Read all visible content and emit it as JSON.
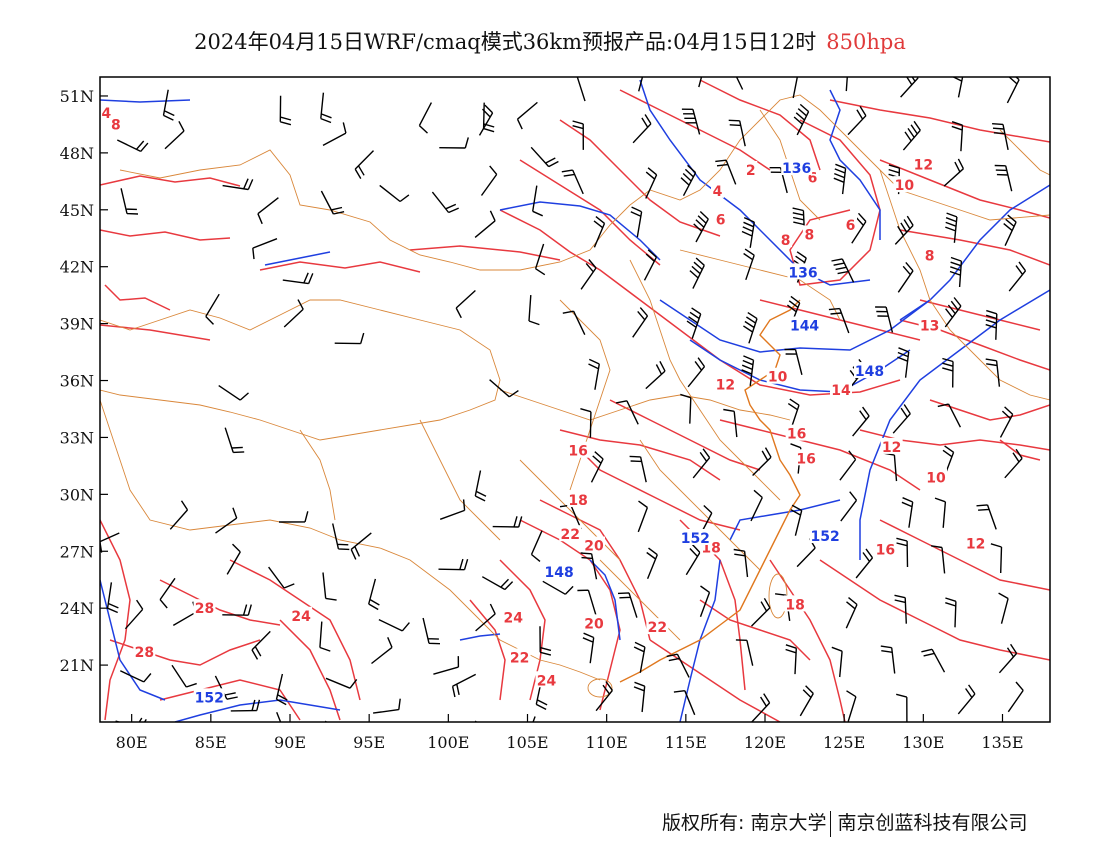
{
  "title": {
    "text": "2024年04月15日WRF/cmaq模式36km预报产品:04月15日12时",
    "level": "850hpa",
    "level_color": "#e03a3a"
  },
  "map": {
    "lon_range": [
      78,
      138
    ],
    "lat_range": [
      18,
      52
    ],
    "lat_ticks": [
      "51N",
      "48N",
      "45N",
      "42N",
      "39N",
      "36N",
      "33N",
      "30N",
      "27N",
      "24N",
      "21N"
    ],
    "lon_ticks": [
      "80E",
      "85E",
      "90E",
      "95E",
      "100E",
      "105E",
      "110E",
      "115E",
      "120E",
      "125E",
      "130E",
      "135E"
    ],
    "colors": {
      "temperature": "#e8393f",
      "geopotential": "#1f3fe0",
      "border": "#d9873a",
      "wind": "#000000"
    },
    "temperature_labels": [
      {
        "text": "4",
        "lon": 78.4,
        "lat": 50.1
      },
      {
        "text": "8",
        "lon": 79.0,
        "lat": 49.5
      },
      {
        "text": "2",
        "lon": 119.1,
        "lat": 47.1
      },
      {
        "text": "4",
        "lon": 117.0,
        "lat": 46.0
      },
      {
        "text": "6",
        "lon": 123.0,
        "lat": 46.7
      },
      {
        "text": "6",
        "lon": 117.2,
        "lat": 44.5
      },
      {
        "text": "8",
        "lon": 121.3,
        "lat": 43.4
      },
      {
        "text": "8",
        "lon": 122.8,
        "lat": 43.7
      },
      {
        "text": "6",
        "lon": 125.4,
        "lat": 44.2
      },
      {
        "text": "12",
        "lon": 130.0,
        "lat": 47.4
      },
      {
        "text": "10",
        "lon": 128.8,
        "lat": 46.3
      },
      {
        "text": "8",
        "lon": 130.4,
        "lat": 42.6
      },
      {
        "text": "12",
        "lon": 117.5,
        "lat": 35.8
      },
      {
        "text": "10",
        "lon": 120.8,
        "lat": 36.2
      },
      {
        "text": "14",
        "lon": 124.8,
        "lat": 35.5
      },
      {
        "text": "13",
        "lon": 130.4,
        "lat": 38.9
      },
      {
        "text": "16",
        "lon": 108.2,
        "lat": 32.3
      },
      {
        "text": "16",
        "lon": 122.0,
        "lat": 33.2
      },
      {
        "text": "16",
        "lon": 122.6,
        "lat": 31.9
      },
      {
        "text": "12",
        "lon": 128.0,
        "lat": 32.5
      },
      {
        "text": "10",
        "lon": 130.8,
        "lat": 30.9
      },
      {
        "text": "18",
        "lon": 108.2,
        "lat": 29.7
      },
      {
        "text": "22",
        "lon": 107.7,
        "lat": 27.9
      },
      {
        "text": "20",
        "lon": 109.2,
        "lat": 27.3
      },
      {
        "text": "18",
        "lon": 116.6,
        "lat": 27.2
      },
      {
        "text": "16",
        "lon": 127.6,
        "lat": 27.1
      },
      {
        "text": "12",
        "lon": 133.3,
        "lat": 27.4
      },
      {
        "text": "28",
        "lon": 84.6,
        "lat": 24.0
      },
      {
        "text": "24",
        "lon": 90.7,
        "lat": 23.6
      },
      {
        "text": "28",
        "lon": 80.8,
        "lat": 21.7
      },
      {
        "text": "24",
        "lon": 104.1,
        "lat": 23.5
      },
      {
        "text": "20",
        "lon": 109.2,
        "lat": 23.2
      },
      {
        "text": "22",
        "lon": 113.2,
        "lat": 23.0
      },
      {
        "text": "22",
        "lon": 104.5,
        "lat": 21.4
      },
      {
        "text": "24",
        "lon": 106.2,
        "lat": 20.2
      },
      {
        "text": "18",
        "lon": 121.9,
        "lat": 24.2
      }
    ],
    "geopotential_labels": [
      {
        "text": "136",
        "lon": 122.0,
        "lat": 47.2
      },
      {
        "text": "136",
        "lon": 122.4,
        "lat": 41.7
      },
      {
        "text": "144",
        "lon": 122.5,
        "lat": 38.9
      },
      {
        "text": "148",
        "lon": 126.6,
        "lat": 36.5
      },
      {
        "text": "152",
        "lon": 123.8,
        "lat": 27.8
      },
      {
        "text": "152",
        "lon": 115.6,
        "lat": 27.7
      },
      {
        "text": "148",
        "lon": 107.0,
        "lat": 25.9
      },
      {
        "text": "152",
        "lon": 84.9,
        "lat": 19.3
      }
    ]
  },
  "footer": {
    "left": "版权所有: 南京大学",
    "right": "南京创蓝科技有限公司"
  }
}
